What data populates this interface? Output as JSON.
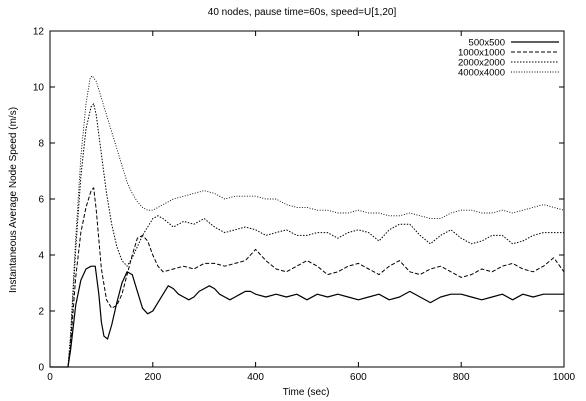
{
  "chart_data": {
    "type": "line",
    "title": "40 nodes, pause time=60s, speed=U[1,20]",
    "xlabel": "Time (sec)",
    "ylabel": "Instantaneous Average Node Speed (m/s)",
    "xlim": [
      0,
      1000
    ],
    "ylim": [
      0,
      12
    ],
    "xticks": [
      0,
      200,
      400,
      600,
      800,
      1000
    ],
    "yticks": [
      0,
      2,
      4,
      6,
      8,
      10,
      12
    ],
    "grid": false,
    "legend_position": "top-right",
    "series": [
      {
        "name": "500x500",
        "style": "solid",
        "x": [
          0,
          35,
          40,
          50,
          60,
          70,
          80,
          88,
          95,
          100,
          105,
          112,
          120,
          130,
          140,
          150,
          160,
          170,
          180,
          190,
          200,
          210,
          220,
          230,
          240,
          250,
          260,
          270,
          280,
          290,
          300,
          310,
          320,
          330,
          340,
          350,
          360,
          370,
          380,
          390,
          400,
          420,
          440,
          460,
          480,
          500,
          520,
          540,
          560,
          580,
          600,
          620,
          640,
          660,
          680,
          700,
          720,
          740,
          760,
          780,
          800,
          820,
          840,
          860,
          880,
          900,
          920,
          940,
          960,
          980,
          1000
        ],
        "y": [
          0,
          0,
          0.6,
          2.2,
          3.1,
          3.5,
          3.6,
          3.6,
          2.6,
          1.6,
          1.1,
          1.0,
          1.5,
          2.3,
          3.0,
          3.4,
          3.3,
          2.7,
          2.1,
          1.9,
          2.0,
          2.3,
          2.6,
          2.9,
          2.8,
          2.6,
          2.5,
          2.4,
          2.5,
          2.7,
          2.8,
          2.9,
          2.8,
          2.6,
          2.5,
          2.4,
          2.5,
          2.6,
          2.7,
          2.7,
          2.6,
          2.5,
          2.6,
          2.5,
          2.6,
          2.4,
          2.6,
          2.5,
          2.6,
          2.5,
          2.4,
          2.5,
          2.6,
          2.4,
          2.5,
          2.7,
          2.5,
          2.3,
          2.5,
          2.6,
          2.6,
          2.5,
          2.4,
          2.5,
          2.6,
          2.4,
          2.6,
          2.5,
          2.6,
          2.6,
          2.6
        ]
      },
      {
        "name": "1000x1000",
        "style": "dashed",
        "x": [
          0,
          35,
          40,
          50,
          60,
          70,
          80,
          85,
          90,
          100,
          110,
          120,
          130,
          140,
          150,
          160,
          170,
          180,
          190,
          200,
          210,
          220,
          240,
          260,
          280,
          300,
          320,
          340,
          360,
          380,
          400,
          420,
          440,
          460,
          480,
          500,
          520,
          540,
          560,
          580,
          600,
          620,
          640,
          660,
          680,
          700,
          720,
          740,
          760,
          780,
          800,
          820,
          840,
          860,
          880,
          900,
          920,
          940,
          960,
          980,
          1000
        ],
        "y": [
          0,
          0,
          0.8,
          3.2,
          4.8,
          5.7,
          6.3,
          6.4,
          5.6,
          3.5,
          2.4,
          2.1,
          2.2,
          2.6,
          3.3,
          4.0,
          4.6,
          4.7,
          4.5,
          4.0,
          3.6,
          3.4,
          3.5,
          3.6,
          3.5,
          3.7,
          3.7,
          3.6,
          3.7,
          3.8,
          4.2,
          3.8,
          3.5,
          3.4,
          3.6,
          3.8,
          3.6,
          3.3,
          3.4,
          3.6,
          3.7,
          3.5,
          3.3,
          3.6,
          3.8,
          3.4,
          3.3,
          3.5,
          3.6,
          3.4,
          3.2,
          3.3,
          3.5,
          3.4,
          3.6,
          3.7,
          3.5,
          3.4,
          3.6,
          3.9,
          3.4
        ]
      },
      {
        "name": "2000x2000",
        "style": "dotted",
        "x": [
          0,
          35,
          40,
          50,
          60,
          70,
          80,
          85,
          90,
          100,
          110,
          120,
          130,
          140,
          150,
          160,
          170,
          180,
          190,
          200,
          210,
          220,
          240,
          260,
          280,
          300,
          320,
          340,
          360,
          380,
          400,
          420,
          440,
          460,
          480,
          500,
          520,
          540,
          560,
          580,
          600,
          620,
          640,
          660,
          680,
          700,
          720,
          740,
          760,
          780,
          800,
          820,
          840,
          860,
          880,
          900,
          920,
          940,
          960,
          980,
          1000
        ],
        "y": [
          0,
          0,
          1.0,
          4.2,
          6.8,
          8.5,
          9.3,
          9.4,
          9.0,
          7.6,
          6.2,
          5.1,
          4.3,
          3.8,
          3.6,
          3.9,
          4.3,
          4.7,
          5.0,
          5.3,
          5.4,
          5.3,
          5.0,
          5.2,
          5.1,
          5.3,
          5.0,
          4.8,
          4.9,
          5.0,
          4.9,
          4.7,
          4.8,
          4.9,
          4.7,
          4.7,
          4.8,
          4.8,
          4.6,
          4.8,
          4.9,
          4.8,
          4.5,
          4.9,
          5.1,
          5.1,
          4.7,
          4.4,
          4.7,
          4.9,
          4.6,
          4.4,
          4.5,
          4.7,
          4.7,
          4.4,
          4.5,
          4.7,
          4.8,
          4.8,
          4.8
        ]
      },
      {
        "name": "4000x4000",
        "style": "dotted-fine",
        "x": [
          0,
          35,
          40,
          50,
          60,
          70,
          78,
          82,
          90,
          100,
          110,
          120,
          130,
          140,
          150,
          160,
          170,
          180,
          190,
          200,
          210,
          220,
          240,
          260,
          280,
          300,
          320,
          340,
          360,
          380,
          400,
          420,
          440,
          460,
          480,
          500,
          520,
          540,
          560,
          580,
          600,
          620,
          640,
          660,
          680,
          700,
          720,
          740,
          760,
          780,
          800,
          820,
          840,
          860,
          880,
          900,
          920,
          940,
          960,
          980,
          1000
        ],
        "y": [
          0,
          0,
          1.2,
          4.6,
          7.5,
          9.4,
          10.3,
          10.4,
          10.2,
          9.6,
          9.0,
          8.4,
          7.8,
          7.2,
          6.6,
          6.2,
          5.9,
          5.7,
          5.6,
          5.6,
          5.7,
          5.8,
          6.0,
          6.1,
          6.2,
          6.3,
          6.2,
          6.0,
          6.1,
          6.1,
          6.1,
          6.0,
          6.0,
          5.8,
          5.7,
          5.7,
          5.6,
          5.6,
          5.5,
          5.5,
          5.6,
          5.5,
          5.5,
          5.4,
          5.4,
          5.5,
          5.4,
          5.3,
          5.3,
          5.5,
          5.6,
          5.6,
          5.5,
          5.5,
          5.6,
          5.5,
          5.6,
          5.7,
          5.8,
          5.7,
          5.6
        ]
      }
    ]
  }
}
